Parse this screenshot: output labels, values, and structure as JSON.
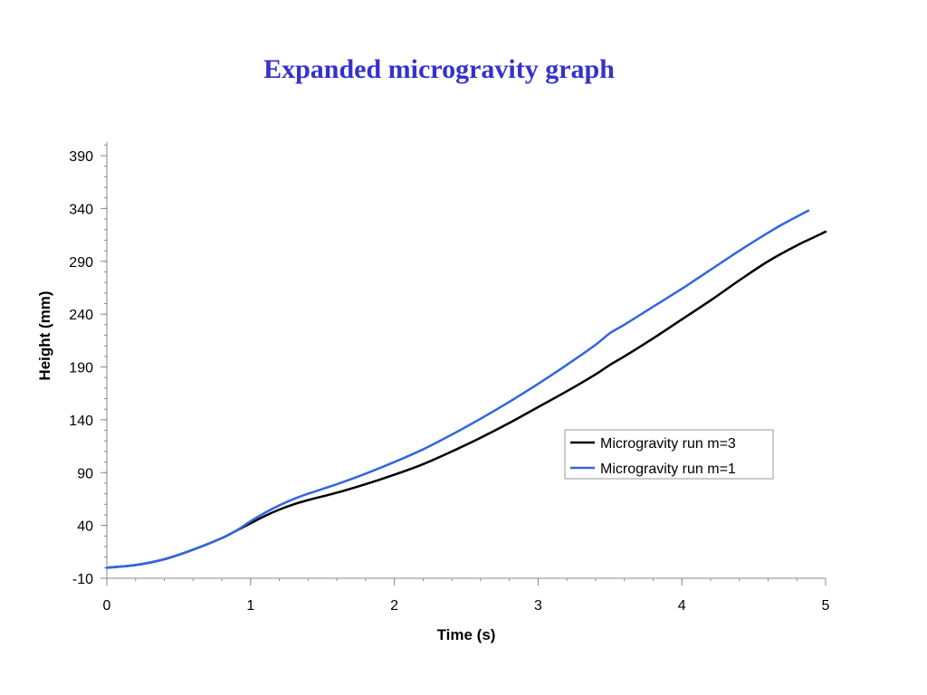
{
  "chart_data": {
    "type": "line",
    "title": "Expanded microgravity graph",
    "xlabel": "Time (s)",
    "ylabel": "Height (mm)",
    "xlim": [
      0,
      5
    ],
    "ylim": [
      -10,
      400
    ],
    "x_ticks": [
      0,
      1,
      2,
      3,
      4,
      5
    ],
    "y_ticks": [
      -10,
      40,
      90,
      140,
      190,
      240,
      290,
      340,
      390
    ],
    "grid": false,
    "legend_position": "center-right",
    "series": [
      {
        "name": "Microgravity run m=3",
        "color": "#000000",
        "x": [
          0,
          0.2,
          0.4,
          0.6,
          0.8,
          0.9,
          1.0,
          1.1,
          1.2,
          1.3,
          1.4,
          1.6,
          1.8,
          2.0,
          2.2,
          2.4,
          2.6,
          2.8,
          3.0,
          3.2,
          3.4,
          3.5,
          3.6,
          3.8,
          4.0,
          4.2,
          4.4,
          4.6,
          4.8,
          5.0
        ],
        "y": [
          0,
          2.5,
          8,
          17,
          28,
          35,
          42,
          49,
          55,
          60,
          64,
          71,
          79,
          88,
          98,
          110,
          123,
          137,
          152,
          167,
          183,
          192,
          200,
          217,
          235,
          253,
          272,
          290,
          305,
          318
        ]
      },
      {
        "name": "Microgravity run m=1",
        "color": "#3366dd",
        "x": [
          0,
          0.2,
          0.4,
          0.6,
          0.8,
          0.9,
          1.0,
          1.1,
          1.2,
          1.3,
          1.4,
          1.6,
          1.8,
          2.0,
          2.2,
          2.4,
          2.6,
          2.8,
          3.0,
          3.2,
          3.4,
          3.5,
          3.6,
          3.8,
          4.0,
          4.2,
          4.4,
          4.6,
          4.7,
          4.88
        ],
        "y": [
          0,
          2.5,
          8,
          17,
          28,
          35,
          44,
          52,
          59,
          65,
          70,
          79,
          89,
          100,
          112,
          126,
          141,
          157,
          174,
          192,
          211,
          222,
          230,
          247,
          264,
          282,
          300,
          317,
          325,
          338
        ]
      }
    ]
  }
}
